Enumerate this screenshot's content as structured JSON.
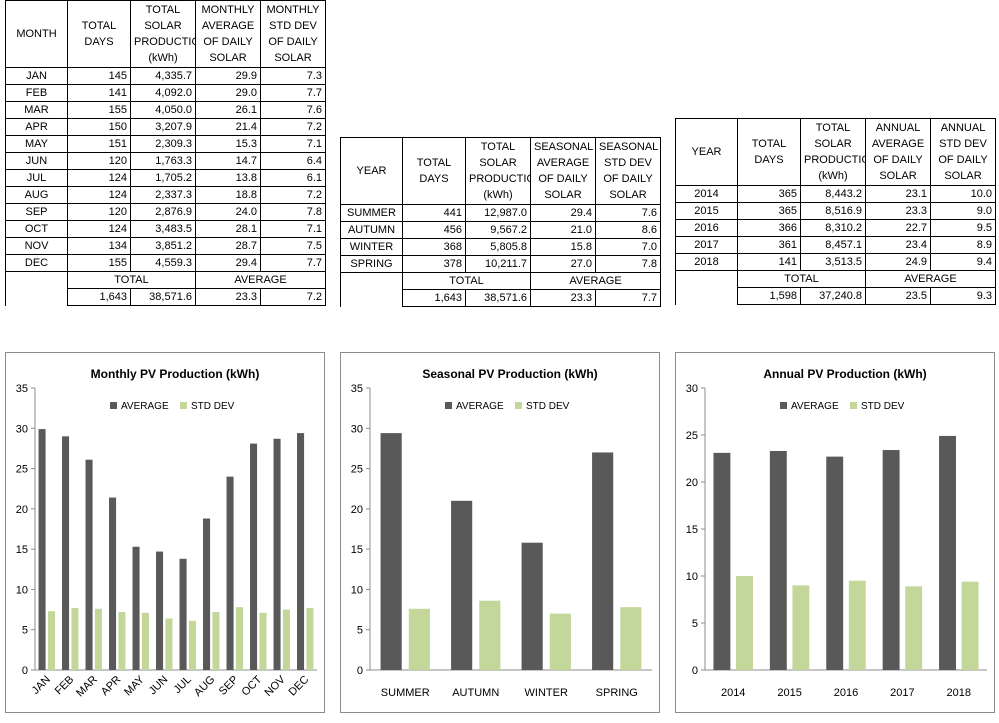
{
  "tables": [
    {
      "header": [
        [
          "MONTH"
        ],
        [
          "TOTAL",
          "DAYS"
        ],
        [
          "TOTAL",
          "SOLAR",
          "PRODUCTION",
          "(kWh)"
        ],
        [
          "MONTHLY",
          "AVERAGE",
          "OF DAILY",
          "SOLAR"
        ],
        [
          "MONTHLY",
          "STD DEV",
          "OF DAILY",
          "SOLAR"
        ]
      ],
      "rows": [
        [
          "JAN",
          "145",
          "4,335.7",
          "29.9",
          "7.3"
        ],
        [
          "FEB",
          "141",
          "4,092.0",
          "29.0",
          "7.7"
        ],
        [
          "MAR",
          "155",
          "4,050.0",
          "26.1",
          "7.6"
        ],
        [
          "APR",
          "150",
          "3,207.9",
          "21.4",
          "7.2"
        ],
        [
          "MAY",
          "151",
          "2,309.3",
          "15.3",
          "7.1"
        ],
        [
          "JUN",
          "120",
          "1,763.3",
          "14.7",
          "6.4"
        ],
        [
          "JUL",
          "124",
          "1,705.2",
          "13.8",
          "6.1"
        ],
        [
          "AUG",
          "124",
          "2,337.3",
          "18.8",
          "7.2"
        ],
        [
          "SEP",
          "120",
          "2,876.9",
          "24.0",
          "7.8"
        ],
        [
          "OCT",
          "124",
          "3,483.5",
          "28.1",
          "7.1"
        ],
        [
          "NOV",
          "134",
          "3,851.2",
          "28.7",
          "7.5"
        ],
        [
          "DEC",
          "155",
          "4,559.3",
          "29.4",
          "7.7"
        ]
      ],
      "footer_labels": [
        "TOTAL",
        "AVERAGE"
      ],
      "footer_values": [
        "1,643",
        "38,571.6",
        "23.3",
        "7.2"
      ]
    },
    {
      "header": [
        [
          "YEAR"
        ],
        [
          "TOTAL",
          "DAYS"
        ],
        [
          "TOTAL",
          "SOLAR",
          "PRODUCTION",
          "(kWh)"
        ],
        [
          "SEASONAL",
          "AVERAGE",
          "OF DAILY",
          "SOLAR"
        ],
        [
          "SEASONAL",
          "STD DEV",
          "OF DAILY",
          "SOLAR"
        ]
      ],
      "rows": [
        [
          "SUMMER",
          "441",
          "12,987.0",
          "29.4",
          "7.6"
        ],
        [
          "AUTUMN",
          "456",
          "9,567.2",
          "21.0",
          "8.6"
        ],
        [
          "WINTER",
          "368",
          "5,805.8",
          "15.8",
          "7.0"
        ],
        [
          "SPRING",
          "378",
          "10,211.7",
          "27.0",
          "7.8"
        ]
      ],
      "footer_labels": [
        "TOTAL",
        "AVERAGE"
      ],
      "footer_values": [
        "1,643",
        "38,571.6",
        "23.3",
        "7.7"
      ]
    },
    {
      "header": [
        [
          "YEAR"
        ],
        [
          "TOTAL",
          "DAYS"
        ],
        [
          "TOTAL",
          "SOLAR",
          "PRODUCTION",
          "(kWh)"
        ],
        [
          "ANNUAL",
          "AVERAGE",
          "OF DAILY",
          "SOLAR"
        ],
        [
          "ANNUAL",
          "STD DEV",
          "OF DAILY",
          "SOLAR"
        ]
      ],
      "rows": [
        [
          "2014",
          "365",
          "8,443.2",
          "23.1",
          "10.0"
        ],
        [
          "2015",
          "365",
          "8,516.9",
          "23.3",
          "9.0"
        ],
        [
          "2016",
          "366",
          "8,310.2",
          "22.7",
          "9.5"
        ],
        [
          "2017",
          "361",
          "8,457.1",
          "23.4",
          "8.9"
        ],
        [
          "2018",
          "141",
          "3,513.5",
          "24.9",
          "9.4"
        ]
      ],
      "footer_labels": [
        "TOTAL",
        "AVERAGE"
      ],
      "footer_values": [
        "1,598",
        "37,240.8",
        "23.5",
        "9.3"
      ]
    }
  ],
  "chart_data": [
    {
      "type": "bar",
      "title": "Monthly PV Production (kWh)",
      "categories": [
        "JAN",
        "FEB",
        "MAR",
        "APR",
        "MAY",
        "JUN",
        "JUL",
        "AUG",
        "SEP",
        "OCT",
        "NOV",
        "DEC"
      ],
      "series": [
        {
          "name": "AVERAGE",
          "color": "#595959",
          "values": [
            29.9,
            29.0,
            26.1,
            21.4,
            15.3,
            14.7,
            13.8,
            18.8,
            24.0,
            28.1,
            28.7,
            29.4
          ]
        },
        {
          "name": "STD DEV",
          "color": "#c4d79b",
          "values": [
            7.3,
            7.7,
            7.6,
            7.2,
            7.1,
            6.4,
            6.1,
            7.2,
            7.8,
            7.1,
            7.5,
            7.7
          ]
        }
      ],
      "ylim": [
        0,
        35
      ],
      "yticks": [
        0,
        5,
        10,
        15,
        20,
        25,
        30,
        35
      ],
      "legend": "top"
    },
    {
      "type": "bar",
      "title": "Seasonal PV Production (kWh)",
      "categories": [
        "SUMMER",
        "AUTUMN",
        "WINTER",
        "SPRING"
      ],
      "series": [
        {
          "name": "AVERAGE",
          "color": "#595959",
          "values": [
            29.4,
            21.0,
            15.8,
            27.0
          ]
        },
        {
          "name": "STD DEV",
          "color": "#c4d79b",
          "values": [
            7.6,
            8.6,
            7.0,
            7.8
          ]
        }
      ],
      "ylim": [
        0,
        35
      ],
      "yticks": [
        0,
        5,
        10,
        15,
        20,
        25,
        30,
        35
      ],
      "legend": "top"
    },
    {
      "type": "bar",
      "title": "Annual PV Production (kWh)",
      "categories": [
        "2014",
        "2015",
        "2016",
        "2017",
        "2018"
      ],
      "series": [
        {
          "name": "AVERAGE",
          "color": "#595959",
          "values": [
            23.1,
            23.3,
            22.7,
            23.4,
            24.9
          ]
        },
        {
          "name": "STD DEV",
          "color": "#c4d79b",
          "values": [
            10.0,
            9.0,
            9.5,
            8.9,
            9.4
          ]
        }
      ],
      "ylim": [
        0,
        30
      ],
      "yticks": [
        0,
        5,
        10,
        15,
        20,
        25,
        30
      ],
      "legend": "top"
    }
  ]
}
